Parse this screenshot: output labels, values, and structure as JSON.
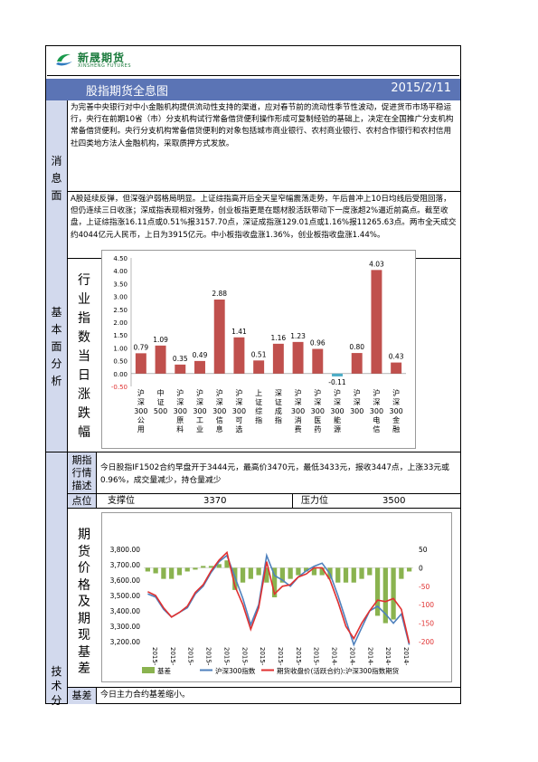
{
  "logo": {
    "name_cn": "新晟期货",
    "name_en": "XINSHENG FUTURES"
  },
  "header": {
    "title": "股指期货全息图",
    "date": "2015/2/11"
  },
  "news": {
    "section_label": [
      "消",
      "息",
      "面"
    ],
    "paragraph": "为完善中央银行对中小金融机构提供流动性支持的渠道，应对春节前的流动性季节性波动，促进货币市场平稳运行，央行在前期10省（市）分支机构试行常备借贷便利操作形成可复制经验的基础上，决定在全国推广分支机构常备借贷便利。央行分支机构常备借贷便利的对象包括城市商业银行、农村商业银行、农村合作银行和农村信用社四类地方法人金融机构，采取质押方式发放。"
  },
  "market": {
    "paragraph": "A股延续反弹，但深强沪弱格局明显。上证综指高开后全天呈窄幅震荡走势，午后曾冲上10日均线后受阻回落，但仍连续三日收涨；深成指表现相对强势，创业板指更是在题材股活跃带动下一度涨超2%逼近前高点。截至收盘，上证综指涨16.11点或0.51%报3157.70点，深证成指涨129.01点或1.16%报11265.63点。两市全天成交约4044亿元人民币，上日为3915亿元。中小板指收盘涨1.36%，创业板指收盘涨1.44%。"
  },
  "fundamental": {
    "section_label": [
      "基",
      "本",
      "面",
      "分",
      "析"
    ],
    "chart_label": [
      "行",
      "业",
      "指",
      "数",
      "当",
      "日",
      "涨",
      "跌",
      "幅"
    ]
  },
  "chart_data": [
    {
      "type": "bar",
      "categories": [
        "沪深300公用",
        "中证500",
        "沪深300原料",
        "沪深300工业",
        "沪深300信息",
        "沪深300可选",
        "上证综指",
        "深证成指",
        "沪深300消费",
        "沪深300医药",
        "沪深300能源",
        "沪深300",
        "沪深300电信",
        "沪深300金融"
      ],
      "category_lines": [
        [
          "沪",
          "深",
          "300",
          "公",
          "用"
        ],
        [
          "中",
          "证",
          "500"
        ],
        [
          "沪",
          "深",
          "300",
          "原",
          "料"
        ],
        [
          "沪",
          "深",
          "300",
          "工",
          "业"
        ],
        [
          "沪",
          "深",
          "300",
          "信",
          "息"
        ],
        [
          "沪",
          "深",
          "300",
          "可",
          "选"
        ],
        [
          "上",
          "证",
          "综",
          "指"
        ],
        [
          "深",
          "证",
          "成",
          "指"
        ],
        [
          "沪",
          "深",
          "300",
          "消",
          "费"
        ],
        [
          "沪",
          "深",
          "300",
          "医",
          "药"
        ],
        [
          "沪",
          "深",
          "300",
          "能",
          "源"
        ],
        [
          "沪",
          "深",
          "300"
        ],
        [
          "沪",
          "深",
          "300",
          "电",
          "信"
        ],
        [
          "沪",
          "深",
          "300",
          "金",
          "融"
        ]
      ],
      "values": [
        0.79,
        1.09,
        0.35,
        0.49,
        2.88,
        1.41,
        0.51,
        1.16,
        1.23,
        0.96,
        -0.11,
        0.8,
        4.03,
        0.43
      ],
      "value_labels": [
        "0.79",
        "1.09",
        "0.35",
        "0.49",
        "2.88",
        "1.41",
        "0.51",
        "1.16",
        "1.23",
        "0.96",
        "-0.11",
        "0.80",
        "4.03",
        "0.43"
      ],
      "yticks": [
        "4.50",
        "4.00",
        "3.50",
        "3.00",
        "2.50",
        "2.00",
        "1.50",
        "1.00",
        "0.50",
        "0.00",
        "-0.50"
      ],
      "ylim": [
        -0.5,
        4.5
      ],
      "colors": {
        "positive": "#c0504d",
        "negative": "#4bacc6"
      }
    },
    {
      "type": "line",
      "legend": [
        "基差",
        "沪深300指数",
        "期货收盘价(活跃合约):沪深300指数期货"
      ],
      "legend_position": "bottom",
      "left_yticks": [
        "3,800.00",
        "3,700.00",
        "3,600.00",
        "3,500.00",
        "3,400.00",
        "3,300.00",
        "3,200.00"
      ],
      "right_yticks": [
        "50",
        "0",
        "-50",
        "-100",
        "-150",
        "-200"
      ],
      "x_tick_labels": [
        "2015-",
        "2015-",
        "2015-",
        "2015-",
        "2015-",
        "2015-",
        "2015-",
        "2015-",
        "2015-",
        "2015-",
        "2014-",
        "2014-",
        "2014-",
        "2014-",
        "2014-"
      ],
      "ylim_left": [
        3200,
        3800
      ],
      "ylim_right": [
        -200,
        50
      ],
      "series": [
        {
          "name": "沪深300指数",
          "color": "#4f81bd",
          "values": [
            3510,
            3490,
            3410,
            3360,
            3390,
            3420,
            3510,
            3560,
            3650,
            3720,
            3760,
            3620,
            3480,
            3310,
            3440,
            3760,
            3630,
            3600,
            3560,
            3620,
            3660,
            3690,
            3710,
            3640,
            3500,
            3340,
            3180,
            3290,
            3400,
            3430,
            3380,
            3320,
            3380,
            3180
          ]
        },
        {
          "name": "期货收盘价(活跃合约):沪深300指数期货",
          "color": "#e03030",
          "values": [
            3525,
            3500,
            3420,
            3360,
            3390,
            3430,
            3520,
            3570,
            3660,
            3730,
            3780,
            3560,
            3440,
            3280,
            3420,
            3720,
            3510,
            3560,
            3570,
            3620,
            3640,
            3680,
            3680,
            3600,
            3460,
            3300,
            3220,
            3320,
            3400,
            3470,
            3460,
            3480,
            3410,
            3190
          ]
        },
        {
          "name": "基差",
          "color": "#8ab34f",
          "values": [
            -10,
            -15,
            -30,
            -30,
            -20,
            -10,
            -5,
            5,
            5,
            10,
            20,
            -60,
            -40,
            -30,
            -20,
            -40,
            -80,
            -40,
            -30,
            -20,
            -10,
            -20,
            -20,
            -30,
            -40,
            -40,
            -40,
            -30,
            -20,
            -130,
            -150,
            -140,
            -30,
            -10
          ]
        }
      ]
    }
  ],
  "technical": {
    "section_label": [
      "技",
      "术",
      "分"
    ],
    "futures_desc_label": [
      "期指",
      "行情",
      "描述"
    ],
    "futures_desc": "今日股指IF1502合约早盘开于3444元，最高价3470元，最低3433元，报收3447点，上涨33元或0.96%，成交量减少，持仓量减少",
    "points_label": "点位",
    "support_label": "支撑位",
    "support_value": "3370",
    "resistance_label": "压力位",
    "resistance_value": "3500",
    "chart_label": [
      "期",
      "货",
      "价",
      "格",
      "及",
      "期",
      "现",
      "基",
      "差"
    ],
    "basis_label": "基差",
    "basis_text": "今日主力合约基差缩小。"
  }
}
